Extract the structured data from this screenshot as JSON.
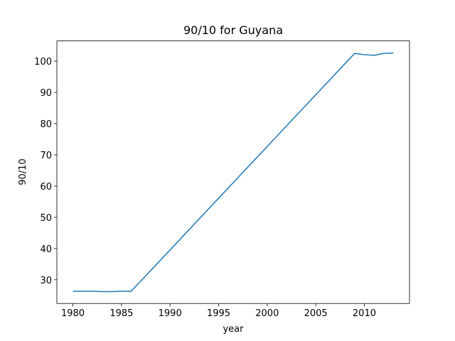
{
  "chart_data": {
    "type": "line",
    "title": "90/10 for Guyana",
    "x_label": "year",
    "y_label": "90/10",
    "x": [
      1980,
      1981,
      1982,
      1983,
      1984,
      1985,
      1986,
      2009,
      2010,
      2011,
      2012,
      2013
    ],
    "series": [
      {
        "name": "90/10",
        "color": "#1f77b4",
        "values": [
          26.3,
          26.3,
          26.35,
          26.2,
          26.2,
          26.3,
          26.3,
          102.5,
          102.1,
          101.9,
          102.5,
          102.6
        ]
      }
    ],
    "xlim": [
      1978.35,
      2014.65
    ],
    "xticks": [
      1980,
      1985,
      1990,
      1995,
      2000,
      2005,
      2010
    ],
    "ylim": [
      22.4,
      106.5
    ],
    "yticks": [
      30,
      40,
      50,
      60,
      70,
      80,
      90,
      100
    ]
  }
}
